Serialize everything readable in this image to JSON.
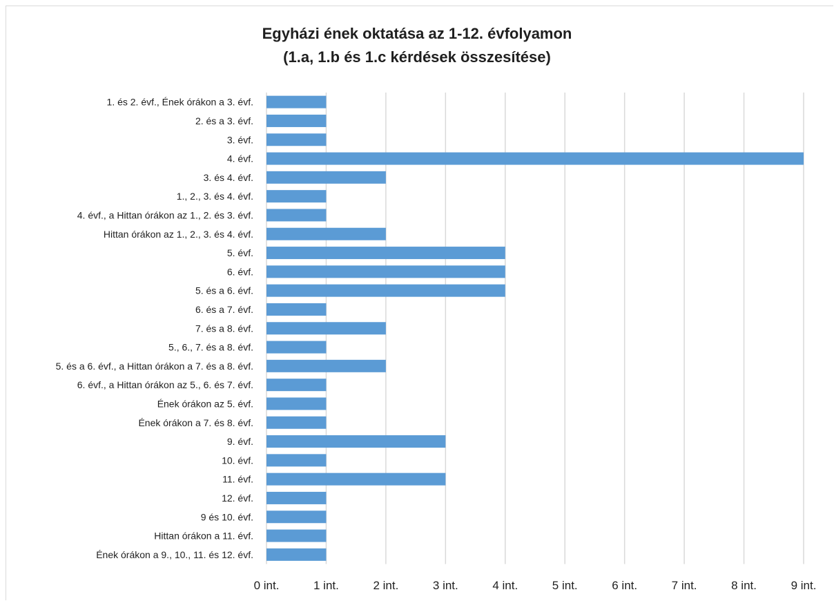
{
  "chart_data": {
    "type": "bar",
    "orientation": "horizontal",
    "title_line1": "Egyházi ének oktatása az 1-12. évfolyamon",
    "title_line2": "(1.a, 1.b és 1.c kérdések összesítése)",
    "categories": [
      "1. és 2. évf., Ének órákon a 3. évf.",
      "2. és a 3. évf.",
      "3. évf.",
      "4. évf.",
      "3. és 4. évf.",
      "1., 2., 3. és 4. évf.",
      "4. évf., a Hittan órákon az 1., 2. és 3. évf.",
      "Hittan órákon az 1., 2., 3. és 4. évf.",
      "5. évf.",
      "6. évf.",
      "5. és a 6. évf.",
      "6. és a 7. évf.",
      "7. és a 8. évf.",
      "5., 6., 7. és a 8. évf.",
      "5. és a 6. évf., a Hittan órákon a 7. és a 8. évf.",
      "6. évf., a Hittan órákon az 5., 6. és 7. évf.",
      "Ének órákon az 5. évf.",
      "Ének órákon a 7. és 8. évf.",
      "9. évf.",
      "10. évf.",
      "11. évf.",
      "12. évf.",
      "9 és 10. évf.",
      "Hittan órákon a 11. évf.",
      "Ének órákon a 9., 10., 11. és 12. évf."
    ],
    "values": [
      1,
      1,
      1,
      9,
      2,
      1,
      1,
      2,
      4,
      4,
      4,
      1,
      2,
      1,
      2,
      1,
      1,
      1,
      3,
      1,
      3,
      1,
      1,
      1,
      1
    ],
    "x_ticks": [
      "0 int.",
      "1 int.",
      "2 int.",
      "3 int.",
      "4 int.",
      "5 int.",
      "6 int.",
      "7 int.",
      "8 int.",
      "9 int."
    ],
    "xlim": [
      0,
      9
    ],
    "grid": "vertical",
    "legend": "none",
    "bar_color": "#5b9bd5",
    "grid_color": "#d9d9d9"
  }
}
